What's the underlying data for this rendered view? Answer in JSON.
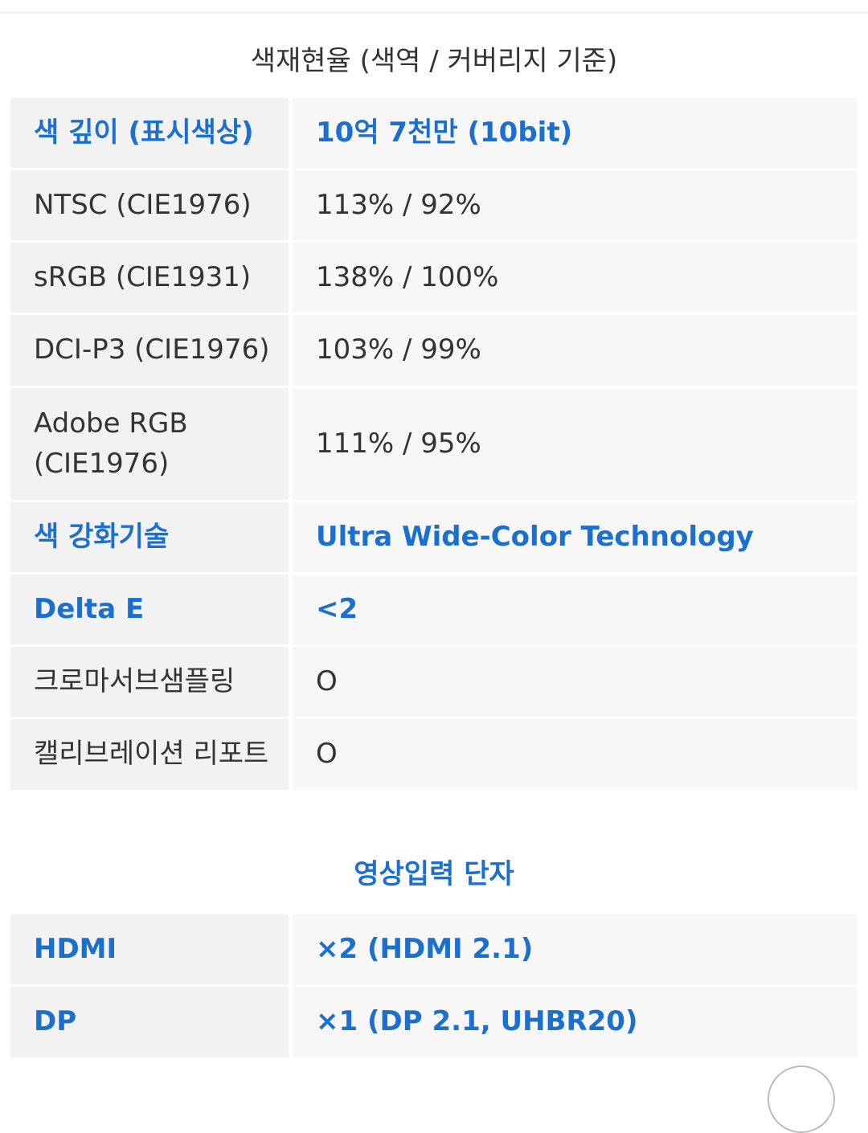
{
  "color_section": {
    "title": "색재현율 (색역 / 커버리지 기준)",
    "rows": [
      {
        "label": "색 깊이 (표시색상)",
        "value": "10억 7천만 (10bit)",
        "highlight": true
      },
      {
        "label": "NTSC (CIE1976)",
        "value": "113% / 92%",
        "highlight": false
      },
      {
        "label": "sRGB (CIE1931)",
        "value": "138% / 100%",
        "highlight": false
      },
      {
        "label": "DCI-P3 (CIE1976)",
        "value": "103% / 99%",
        "highlight": false
      },
      {
        "label": "Adobe RGB (CIE1976)",
        "value": "111% / 95%",
        "highlight": false
      },
      {
        "label": "색 강화기술",
        "value": "Ultra Wide-Color Technology",
        "highlight": true
      },
      {
        "label": "Delta E",
        "value": "<2",
        "highlight": true
      },
      {
        "label": "크로마서브샘플링",
        "value": "O",
        "highlight": false
      },
      {
        "label": "캘리브레이션 리포트",
        "value": "O",
        "highlight": false
      }
    ]
  },
  "input_section": {
    "title": "영상입력 단자",
    "rows": [
      {
        "label": "HDMI",
        "value": "×2 (HDMI 2.1)",
        "highlight": true
      },
      {
        "label": "DP",
        "value": "×1 (DP 2.1, UHBR20)",
        "highlight": true
      }
    ]
  },
  "colors": {
    "accent": "#1a6fd0",
    "text": "#333333",
    "label_bg": "#f2f2f2",
    "value_bg": "#f7f7f8"
  }
}
